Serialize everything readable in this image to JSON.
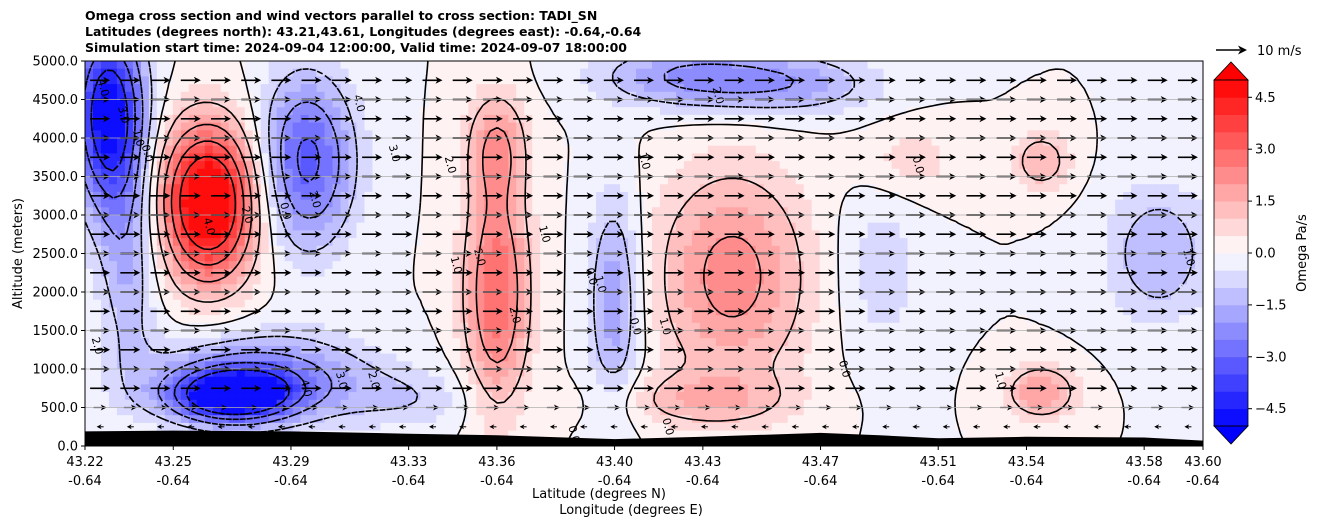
{
  "chart_data": {
    "type": "filled-contour cross section with wind vectors",
    "title": [
      "Omega cross section and wind vectors parallel to cross section: TADI_SN",
      "Latitudes (degrees north): 43.21,43.61, Longitudes (degrees east): -0.64,-0.64",
      "Simulation start time: 2024-09-04 12:00:00, Valid time: 2024-09-07 18:00:00"
    ],
    "xlabel": "Latitude (degrees N)",
    "xlabel2": "Longitude (degrees E)",
    "ylabel": "Altitude (meters)",
    "xlim": [
      43.22,
      43.6
    ],
    "ylim": [
      0.0,
      5000.0
    ],
    "x_ticks": [
      {
        "lat": "43.22",
        "lon": "-0.64",
        "pos": 43.22
      },
      {
        "lat": "43.25",
        "lon": "-0.64",
        "pos": 43.25
      },
      {
        "lat": "43.29",
        "lon": "-0.64",
        "pos": 43.29
      },
      {
        "lat": "43.33",
        "lon": "-0.64",
        "pos": 43.33
      },
      {
        "lat": "43.36",
        "lon": "-0.64",
        "pos": 43.36
      },
      {
        "lat": "43.40",
        "lon": "-0.64",
        "pos": 43.4
      },
      {
        "lat": "43.43",
        "lon": "-0.64",
        "pos": 43.43
      },
      {
        "lat": "43.47",
        "lon": "-0.64",
        "pos": 43.47
      },
      {
        "lat": "43.51",
        "lon": "-0.64",
        "pos": 43.51
      },
      {
        "lat": "43.54",
        "lon": "-0.64",
        "pos": 43.54
      },
      {
        "lat": "43.58",
        "lon": "-0.64",
        "pos": 43.58
      },
      {
        "lat": "43.60",
        "lon": "-0.64",
        "pos": 43.6
      }
    ],
    "y_ticks": [
      {
        "label": "0.0",
        "value": 0
      },
      {
        "label": "500.0",
        "value": 500
      },
      {
        "label": "1000.0",
        "value": 1000
      },
      {
        "label": "1500.0",
        "value": 1500
      },
      {
        "label": "2000.0",
        "value": 2000
      },
      {
        "label": "2500.0",
        "value": 2500
      },
      {
        "label": "3000.0",
        "value": 3000
      },
      {
        "label": "3500.0",
        "value": 3500
      },
      {
        "label": "4000.0",
        "value": 4000
      },
      {
        "label": "4500.0",
        "value": 4500
      },
      {
        "label": "5000.0",
        "value": 5000
      }
    ],
    "grid": "horizontal",
    "colorbar": {
      "label": "Omega Pa/s",
      "min": -5.0,
      "max": 5.0,
      "step": 0.5,
      "extend": "both",
      "ticks": [
        {
          "label": "4.5",
          "value": 4.5
        },
        {
          "label": "3.0",
          "value": 3.0
        },
        {
          "label": "1.5",
          "value": 1.5
        },
        {
          "label": "0.0",
          "value": 0.0
        },
        {
          "label": "−1.5",
          "value": -1.5
        },
        {
          "label": "−3.0",
          "value": -3.0
        },
        {
          "label": "−4.5",
          "value": -4.5
        }
      ]
    },
    "quiver_key": {
      "label": "10 m/s",
      "value": 10
    },
    "omega_features": [
      {
        "lat": 43.262,
        "alt": 3000,
        "value": 4.2,
        "rx": 0.016,
        "ry": 950
      },
      {
        "lat": 43.262,
        "alt": 3500,
        "value": 2.0,
        "rx": 0.018,
        "ry": 900
      },
      {
        "lat": 43.36,
        "alt": 2000,
        "value": 3.0,
        "rx": 0.011,
        "ry": 1500
      },
      {
        "lat": 43.36,
        "alt": 3900,
        "value": 1.8,
        "rx": 0.01,
        "ry": 700
      },
      {
        "lat": 43.44,
        "alt": 2200,
        "value": 2.3,
        "rx": 0.026,
        "ry": 1400
      },
      {
        "lat": 43.43,
        "alt": 600,
        "value": 1.2,
        "rx": 0.03,
        "ry": 350
      },
      {
        "lat": 43.5,
        "alt": 3700,
        "value": 0.8,
        "rx": 0.018,
        "ry": 500
      },
      {
        "lat": 43.545,
        "alt": 3700,
        "value": 1.5,
        "rx": 0.01,
        "ry": 400
      },
      {
        "lat": 43.545,
        "alt": 700,
        "value": 2.0,
        "rx": 0.012,
        "ry": 350
      },
      {
        "lat": 43.27,
        "alt": 650,
        "value": -5.0,
        "rx": 0.02,
        "ry": 330
      },
      {
        "lat": 43.28,
        "alt": 900,
        "value": -2.5,
        "rx": 0.036,
        "ry": 550
      },
      {
        "lat": 43.295,
        "alt": 3700,
        "value": -3.3,
        "rx": 0.016,
        "ry": 1100
      },
      {
        "lat": 43.228,
        "alt": 4300,
        "value": -5.0,
        "rx": 0.012,
        "ry": 1200
      },
      {
        "lat": 43.235,
        "alt": 2500,
        "value": -1.6,
        "rx": 0.01,
        "ry": 1500
      },
      {
        "lat": 43.4,
        "alt": 1900,
        "value": -2.0,
        "rx": 0.009,
        "ry": 1400
      },
      {
        "lat": 43.425,
        "alt": 4800,
        "value": -2.0,
        "rx": 0.03,
        "ry": 400
      },
      {
        "lat": 43.46,
        "alt": 4700,
        "value": -1.6,
        "rx": 0.03,
        "ry": 400
      },
      {
        "lat": 43.585,
        "alt": 2500,
        "value": -1.5,
        "rx": 0.018,
        "ry": 900
      },
      {
        "lat": 43.49,
        "alt": 2300,
        "value": -0.8,
        "rx": 0.015,
        "ry": 1200
      },
      {
        "lat": 43.33,
        "alt": 600,
        "value": -0.8,
        "rx": 0.025,
        "ry": 400
      }
    ],
    "contour_labels": [
      {
        "text": "4.0",
        "lat": 43.262,
        "alt": 2850
      },
      {
        "text": "2.0",
        "lat": 43.275,
        "alt": 3000
      },
      {
        "text": "0.0",
        "lat": 43.288,
        "alt": 3050
      },
      {
        "text": "2.0",
        "lat": 43.298,
        "alt": 3200
      },
      {
        "text": "4.0",
        "lat": 43.313,
        "alt": 4450
      },
      {
        "text": "3.0",
        "lat": 43.325,
        "alt": 3800
      },
      {
        "text": "2.0",
        "lat": 43.344,
        "alt": 3650
      },
      {
        "text": "4.0",
        "lat": 43.226,
        "alt": 4650
      },
      {
        "text": "3.0",
        "lat": 43.233,
        "alt": 4300
      },
      {
        "text": "1.0",
        "lat": 43.238,
        "alt": 4000
      },
      {
        "text": "0.0",
        "lat": 43.241,
        "alt": 3800
      },
      {
        "text": "1.0",
        "lat": 43.346,
        "alt": 2350
      },
      {
        "text": "2.0",
        "lat": 43.354,
        "alt": 2450
      },
      {
        "text": "1.0",
        "lat": 43.376,
        "alt": 2750
      },
      {
        "text": "2.0",
        "lat": 43.366,
        "alt": 1700
      },
      {
        "text": "0.0",
        "lat": 43.392,
        "alt": 2200
      },
      {
        "text": "1.0",
        "lat": 43.395,
        "alt": 2100
      },
      {
        "text": "0.0",
        "lat": 43.407,
        "alt": 1550
      },
      {
        "text": "1.0",
        "lat": 43.417,
        "alt": 1550
      },
      {
        "text": "2.0",
        "lat": 43.435,
        "alt": 4550
      },
      {
        "text": "1.0",
        "lat": 43.41,
        "alt": 3700
      },
      {
        "text": "0.0",
        "lat": 43.503,
        "alt": 3650
      },
      {
        "text": "1.0",
        "lat": 43.595,
        "alt": 2450
      },
      {
        "text": "2.0",
        "lat": 43.224,
        "alt": 1300
      },
      {
        "text": "4.0",
        "lat": 43.295,
        "alt": 750
      },
      {
        "text": "3.0",
        "lat": 43.307,
        "alt": 850
      },
      {
        "text": "2.0",
        "lat": 43.318,
        "alt": 850
      },
      {
        "text": "0.0",
        "lat": 43.478,
        "alt": 1000
      },
      {
        "text": "1.0",
        "lat": 43.531,
        "alt": 850
      },
      {
        "text": "0.0",
        "lat": 43.386,
        "alt": 150
      },
      {
        "text": "0.0",
        "lat": 43.418,
        "alt": 250
      }
    ]
  }
}
